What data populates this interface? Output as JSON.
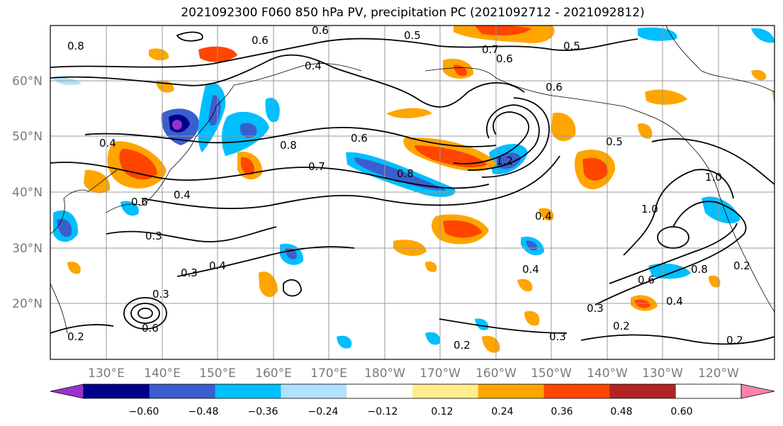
{
  "title": "2021092300 F060 850 hPa PV, precipitation PC (2021092712 - 2021092812)",
  "latitude_labels": [
    "60°N",
    "50°N",
    "40°N",
    "30°N",
    "20°N"
  ],
  "longitude_labels": [
    "130°E",
    "140°E",
    "150°E",
    "160°E",
    "170°E",
    "180°W",
    "170°W",
    "160°W",
    "150°W",
    "140°W",
    "130°W",
    "120°W"
  ],
  "colorbar": {
    "ticks": [
      "−0.60",
      "−0.48",
      "−0.36",
      "−0.24",
      "−0.12",
      "0.12",
      "0.24",
      "0.36",
      "0.48",
      "0.60"
    ],
    "colors": [
      "#9a32cd",
      "#00008b",
      "#3a5fcd",
      "#00bfff",
      "#b0e2ff",
      "#ffffff",
      "#ffec8b",
      "#ffa500",
      "#ff4500",
      "#b22222",
      "#ff82ab"
    ]
  },
  "contour_labels": [
    "0.6",
    "0.5",
    "0.8",
    "0.4",
    "0.6",
    "0.6",
    "0.5",
    "0.7",
    "0.6",
    "0.4",
    "0.8",
    "0.7",
    "0.8",
    "0.6",
    "1.2",
    "1.0",
    "0.5",
    "0.4",
    "0.4",
    "0.3",
    "0.3",
    "0.4",
    "0.3",
    "0.6",
    "0.2",
    "0.2",
    "0.3",
    "0.2",
    "0.2",
    "0.4",
    "1.0",
    "0.8",
    "0.6",
    "0.2",
    "0.3",
    "0.4",
    "0.6"
  ]
}
